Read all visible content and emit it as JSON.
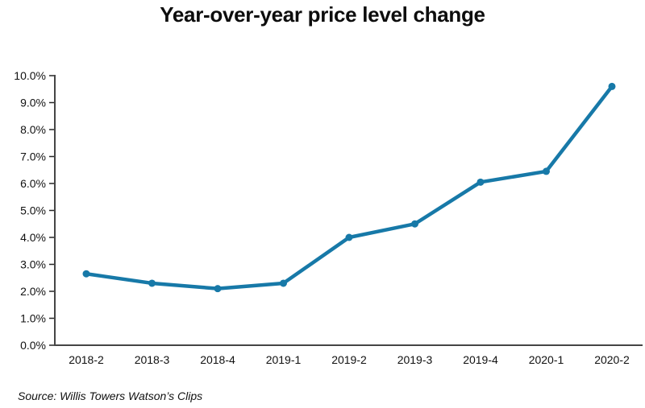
{
  "title": "Year-over-year price level change",
  "source": "Source: Willis Towers Watson’s Clips",
  "colors": {
    "line": "#1779A8",
    "marker": "#1779A8",
    "axis": "#454545",
    "tick": "#262626",
    "label_text": "#111111",
    "background": "#ffffff"
  },
  "chart_data": {
    "type": "line",
    "title": "Year-over-year price level change",
    "categories": [
      "2018-2",
      "2018-3",
      "2018-4",
      "2019-1",
      "2019-2",
      "2019-3",
      "2019-4",
      "2020-1",
      "2020-2"
    ],
    "values": [
      2.65,
      2.3,
      2.1,
      2.3,
      4.0,
      4.5,
      6.05,
      6.45,
      9.6
    ],
    "xlabel": "",
    "ylabel": "",
    "ylim": [
      0,
      10
    ],
    "ytick_step": 1,
    "ytick_labels": [
      "0.0%",
      "1.0%",
      "2.0%",
      "3.0%",
      "4.0%",
      "5.0%",
      "6.0%",
      "7.0%",
      "8.0%",
      "9.0%",
      "10.0%"
    ],
    "grid": false,
    "legend": false,
    "marker": "circle",
    "series_name": "Year-over-year price level change"
  }
}
